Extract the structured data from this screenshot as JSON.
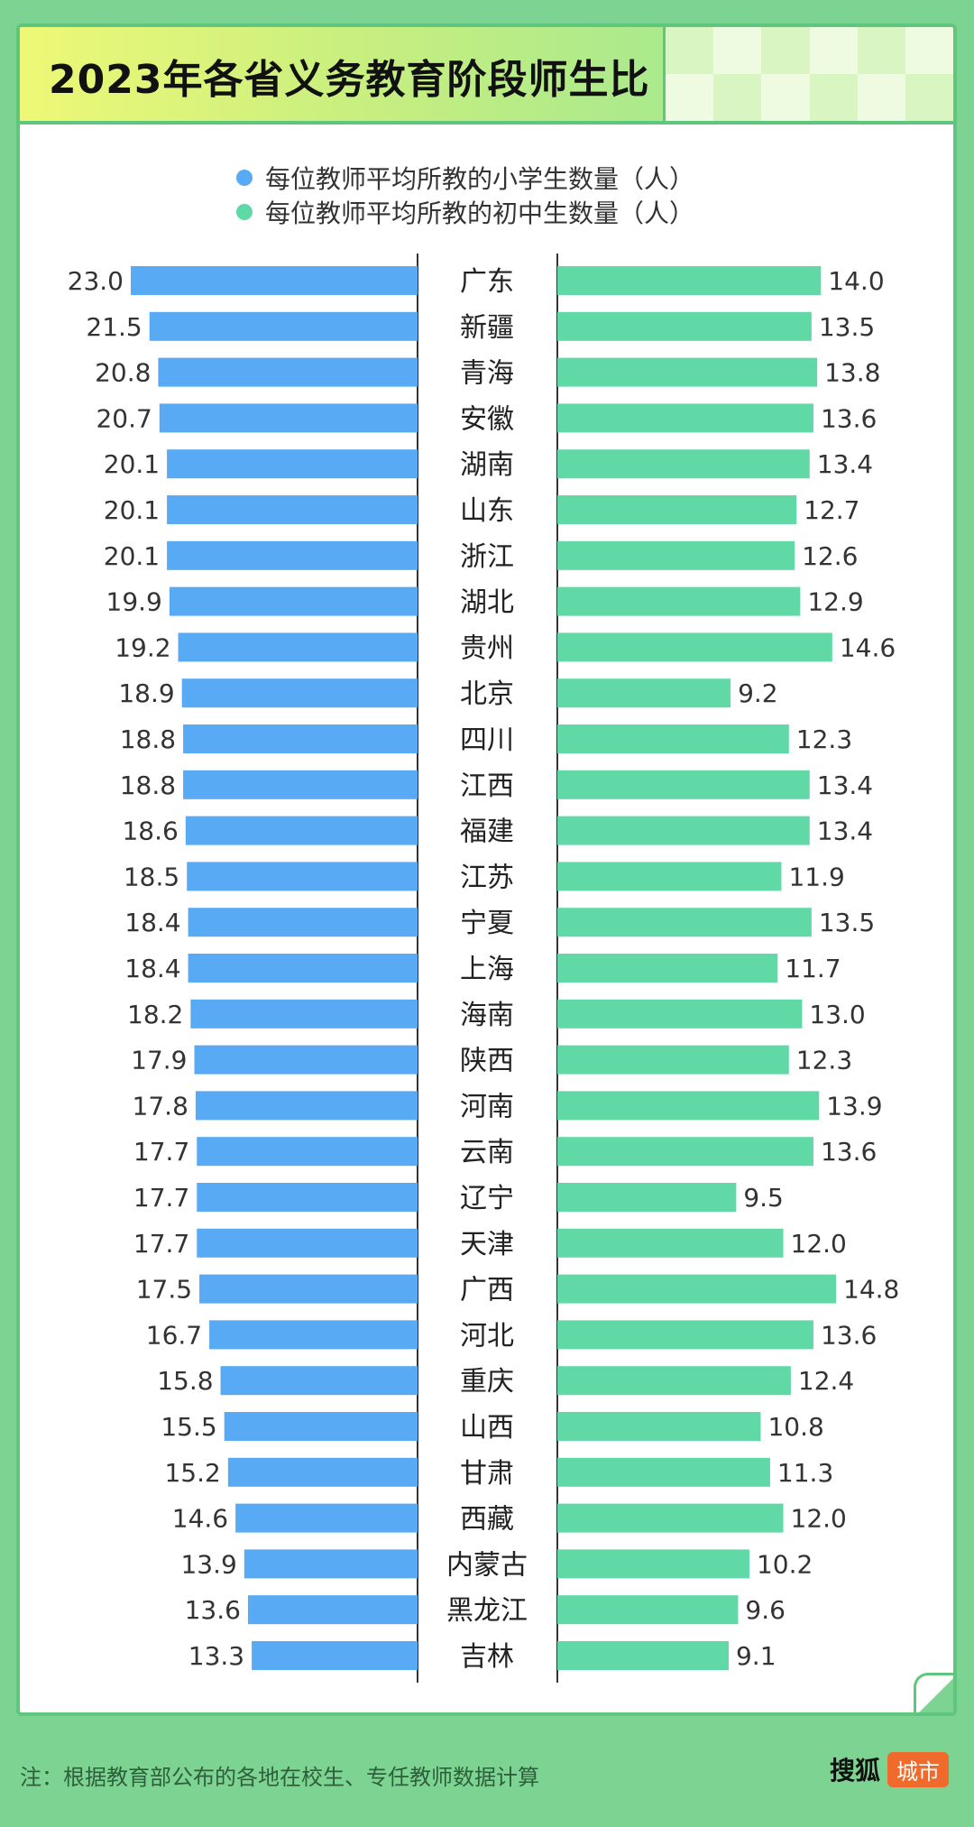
{
  "title": "2023年各省义务教育阶段师生比",
  "legend": {
    "primary": "每位教师平均所教的小学生数量（人）",
    "middle": "每位教师平均所教的初中生数量（人）"
  },
  "colors": {
    "primary": "#57aaf3",
    "middle": "#60d9a6",
    "background": "#7dd392",
    "accent_border": "#5fc77d"
  },
  "footer": {
    "note": "注：根据教育部公布的各地在校生、专任教师数据计算",
    "brand_name": "搜狐",
    "brand_tag": "城市"
  },
  "chart_data": {
    "type": "bar",
    "orientation": "horizontal-butterfly",
    "categories": [
      "广东",
      "新疆",
      "青海",
      "安徽",
      "湖南",
      "山东",
      "浙江",
      "湖北",
      "贵州",
      "北京",
      "四川",
      "江西",
      "福建",
      "江苏",
      "宁夏",
      "上海",
      "海南",
      "陕西",
      "河南",
      "云南",
      "辽宁",
      "天津",
      "广西",
      "河北",
      "重庆",
      "山西",
      "甘肃",
      "西藏",
      "内蒙古",
      "黑龙江",
      "吉林"
    ],
    "series": [
      {
        "name": "每位教师平均所教的小学生数量（人）",
        "side": "left",
        "values": [
          23.0,
          21.5,
          20.8,
          20.7,
          20.1,
          20.1,
          20.1,
          19.9,
          19.2,
          18.9,
          18.8,
          18.8,
          18.6,
          18.5,
          18.4,
          18.4,
          18.2,
          17.9,
          17.8,
          17.7,
          17.7,
          17.7,
          17.5,
          16.7,
          15.8,
          15.5,
          15.2,
          14.6,
          13.9,
          13.6,
          13.3
        ]
      },
      {
        "name": "每位教师平均所教的初中生数量（人）",
        "side": "right",
        "values": [
          14.0,
          13.5,
          13.8,
          13.6,
          13.4,
          12.7,
          12.6,
          12.9,
          14.6,
          9.2,
          12.3,
          13.4,
          13.4,
          11.9,
          13.5,
          11.7,
          13.0,
          12.3,
          13.9,
          13.6,
          9.5,
          12.0,
          14.8,
          13.6,
          12.4,
          10.8,
          11.3,
          12.0,
          10.2,
          9.6,
          9.1
        ]
      }
    ]
  }
}
